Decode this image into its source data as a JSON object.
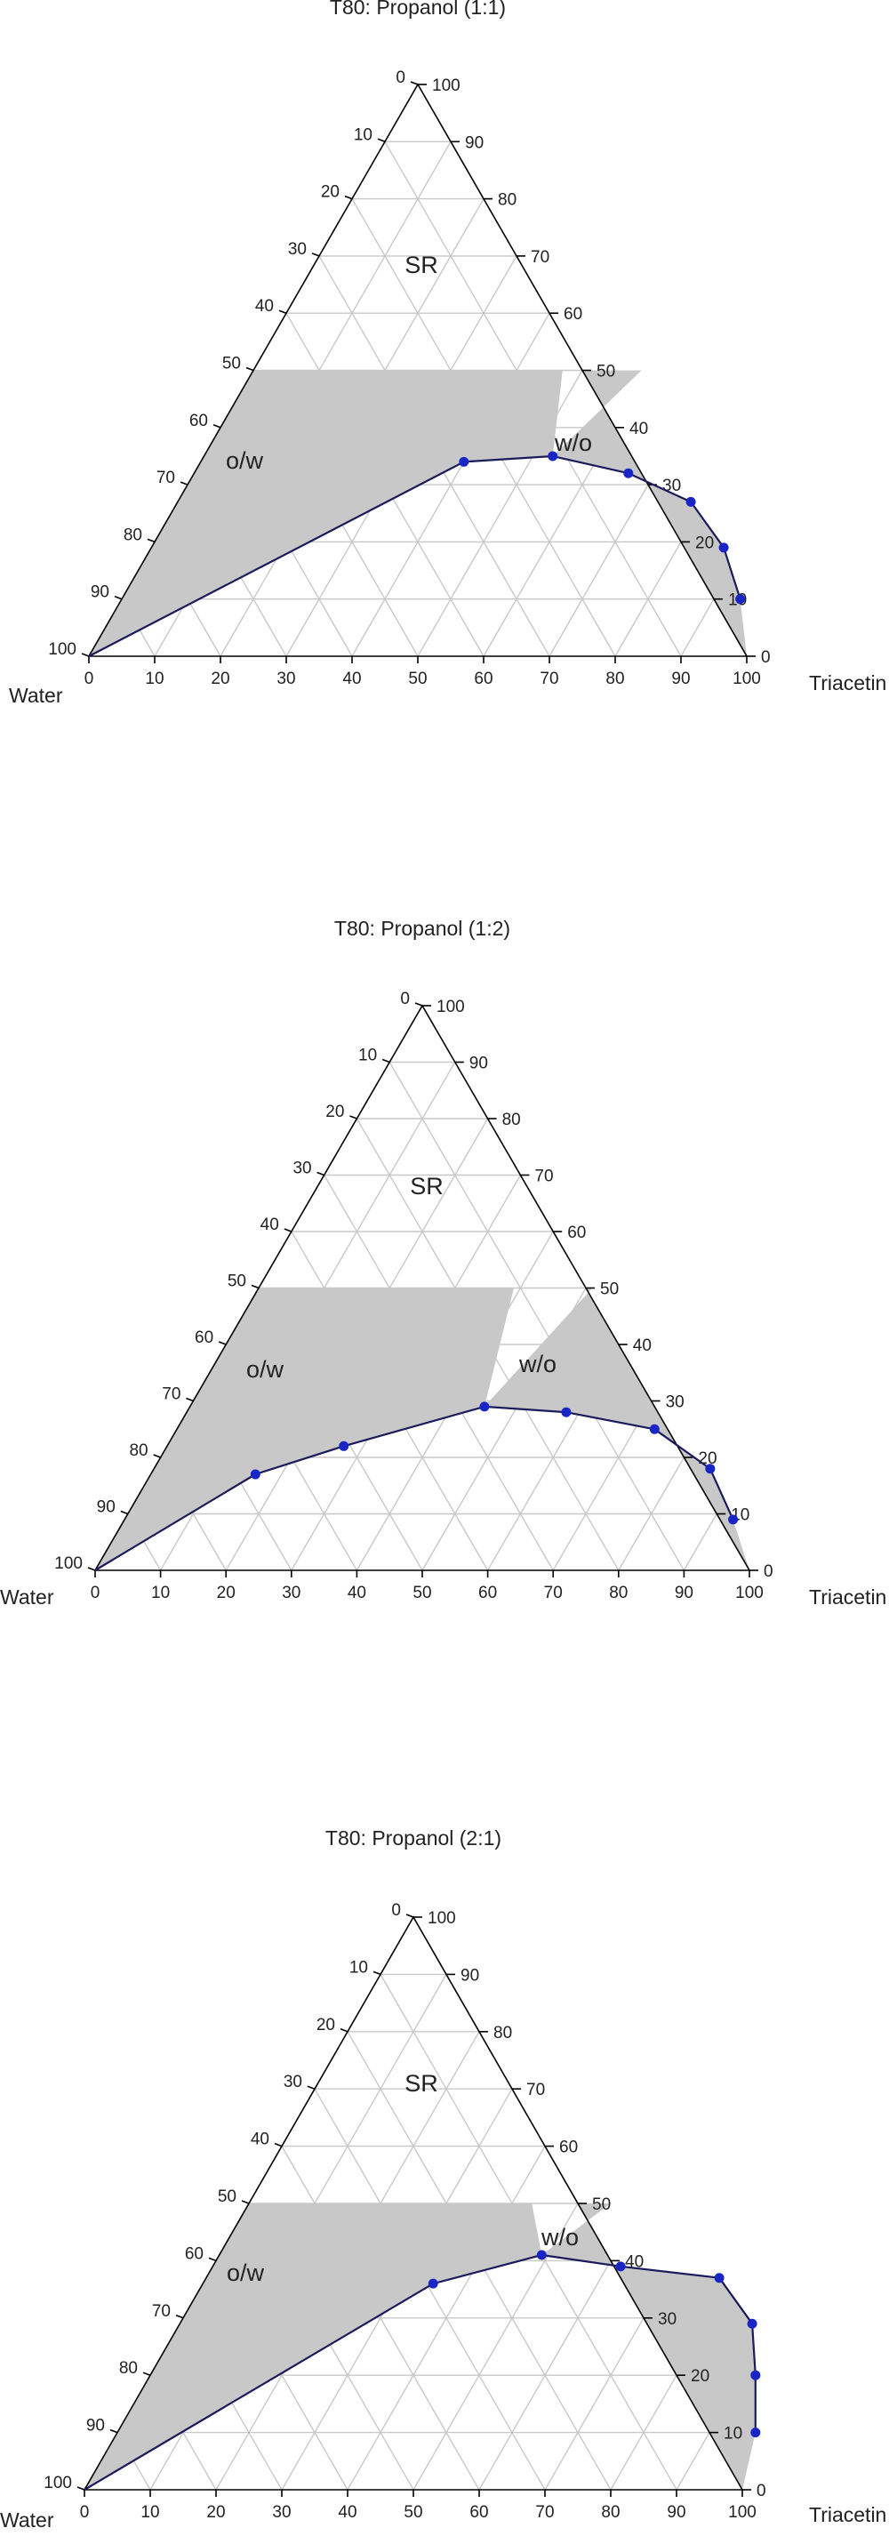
{
  "figure": {
    "background": "#ffffff"
  },
  "colors": {
    "region_fill": "#c8c8c8",
    "grid": "#c8c8c8",
    "boundary_line": "#1b1b5c",
    "points": "#1a25c6",
    "axes": "#000000"
  },
  "chart_data": [
    {
      "type": "ternary",
      "title": "T80: Propanol (1:1)",
      "corner_labels": {
        "left": "Water",
        "right": "Triacetin"
      },
      "ticks": {
        "left_axis": [
          "0",
          "10",
          "20",
          "30",
          "40",
          "50",
          "60",
          "70",
          "80",
          "90",
          "100"
        ],
        "right_axis": [
          "100",
          "90",
          "80",
          "70",
          "60",
          "50",
          "40",
          "30",
          "20",
          "10",
          "0"
        ],
        "bottom_axis": [
          "0",
          "10",
          "20",
          "30",
          "40",
          "50",
          "60",
          "70",
          "80",
          "90",
          "100"
        ]
      },
      "region_labels": [
        "o/w",
        "w/o",
        "SR"
      ],
      "boundary": [
        {
          "x": 0,
          "y": 0
        },
        {
          "x": 40,
          "y": 34
        },
        {
          "x": 53,
          "y": 35
        },
        {
          "x": 66,
          "y": 32
        },
        {
          "x": 78,
          "y": 27
        },
        {
          "x": 87,
          "y": 19
        },
        {
          "x": 94,
          "y": 10
        }
      ]
    },
    {
      "type": "ternary",
      "title": "T80: Propanol (1:2)",
      "corner_labels": {
        "left": "Water",
        "right": "Triacetin"
      },
      "ticks": {
        "left_axis": [
          "0",
          "10",
          "20",
          "30",
          "40",
          "50",
          "60",
          "70",
          "80",
          "90",
          "100"
        ],
        "right_axis": [
          "100",
          "90",
          "80",
          "70",
          "60",
          "50",
          "40",
          "30",
          "20",
          "10",
          "0"
        ],
        "bottom_axis": [
          "0",
          "10",
          "20",
          "30",
          "40",
          "50",
          "60",
          "70",
          "80",
          "90",
          "100"
        ]
      },
      "region_labels": [
        "o/w",
        "w/o",
        "SR"
      ],
      "boundary": [
        {
          "x": 0,
          "y": 0
        },
        {
          "x": 16,
          "y": 17
        },
        {
          "x": 27,
          "y": 22
        },
        {
          "x": 45,
          "y": 29
        },
        {
          "x": 58,
          "y": 28
        },
        {
          "x": 73,
          "y": 25
        },
        {
          "x": 85,
          "y": 18
        },
        {
          "x": 93,
          "y": 9
        }
      ]
    },
    {
      "type": "ternary",
      "title": "T80: Propanol (2:1)",
      "corner_labels": {
        "left": "Water",
        "right": "Triacetin"
      },
      "ticks": {
        "left_axis": [
          "0",
          "10",
          "20",
          "30",
          "40",
          "50",
          "60",
          "70",
          "80",
          "90",
          "100"
        ],
        "right_axis": [
          "100",
          "90",
          "80",
          "70",
          "60",
          "50",
          "40",
          "30",
          "20",
          "10",
          "0"
        ],
        "bottom_axis": [
          "0",
          "10",
          "20",
          "30",
          "40",
          "50",
          "60",
          "70",
          "80",
          "90",
          "100"
        ]
      },
      "region_labels": [
        "o/w",
        "w/o",
        "SR"
      ],
      "boundary": [
        {
          "x": 0,
          "y": 0
        },
        {
          "x": 35,
          "y": 36
        },
        {
          "x": 49,
          "y": 41
        },
        {
          "x": 62,
          "y": 39
        },
        {
          "x": 78,
          "y": 37
        },
        {
          "x": 87,
          "y": 29
        },
        {
          "x": 92,
          "y": 20
        },
        {
          "x": 97,
          "y": 10
        }
      ]
    }
  ]
}
